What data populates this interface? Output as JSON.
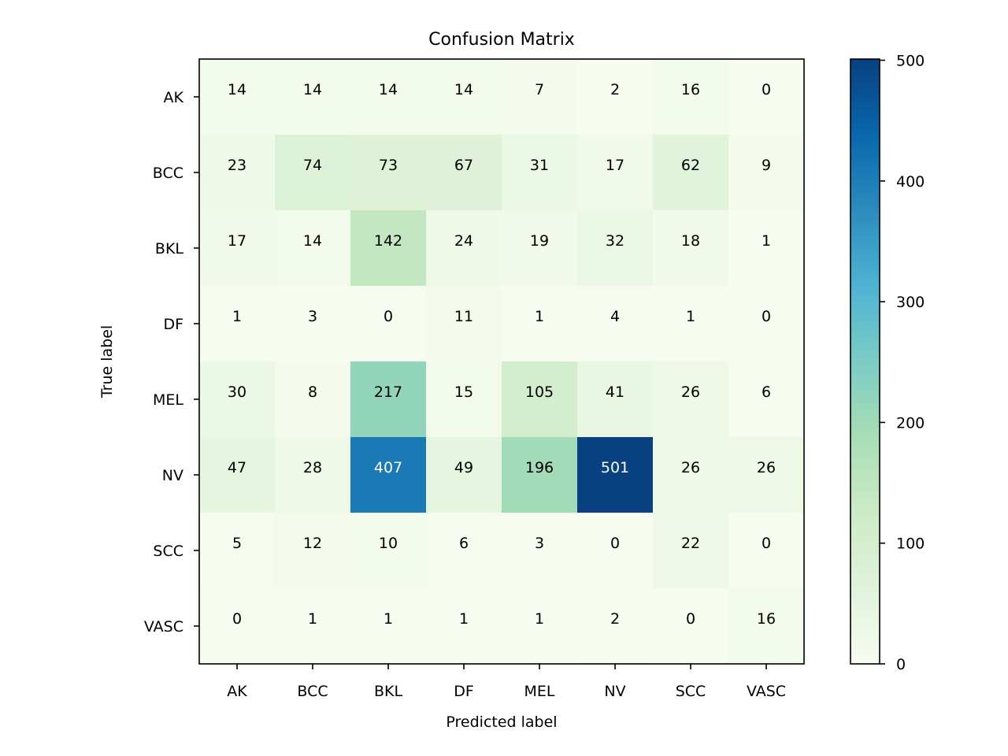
{
  "chart_data": {
    "type": "heatmap",
    "title": "Confusion Matrix",
    "xlabel": "Predicted label",
    "ylabel": "True label",
    "x_categories": [
      "AK",
      "BCC",
      "BKL",
      "DF",
      "MEL",
      "NV",
      "SCC",
      "VASC"
    ],
    "y_categories": [
      "AK",
      "BCC",
      "BKL",
      "DF",
      "MEL",
      "NV",
      "SCC",
      "VASC"
    ],
    "values": [
      [
        14,
        14,
        14,
        14,
        7,
        2,
        16,
        0
      ],
      [
        23,
        74,
        73,
        67,
        31,
        17,
        62,
        9
      ],
      [
        17,
        14,
        142,
        24,
        19,
        32,
        18,
        1
      ],
      [
        1,
        3,
        0,
        11,
        1,
        4,
        1,
        0
      ],
      [
        30,
        8,
        217,
        15,
        105,
        41,
        26,
        6
      ],
      [
        47,
        28,
        407,
        49,
        196,
        501,
        26,
        26
      ],
      [
        5,
        12,
        10,
        6,
        3,
        0,
        22,
        0
      ],
      [
        0,
        1,
        1,
        1,
        1,
        2,
        0,
        16
      ]
    ],
    "colormap": "GnBu",
    "colorbar": {
      "min": 0,
      "max": 501,
      "ticks": [
        0,
        100,
        200,
        300,
        400,
        500
      ],
      "tick_labels": [
        "0",
        "100",
        "200",
        "300",
        "400",
        "500"
      ]
    }
  }
}
